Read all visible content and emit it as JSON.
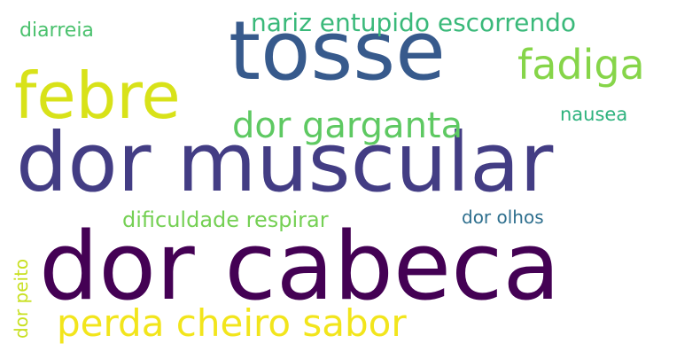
{
  "words": [
    {
      "id": "dor-cabeca",
      "text": "dor cabeca",
      "color": "#440154"
    },
    {
      "id": "dor-muscular",
      "text": "dor muscular",
      "color": "#433d84"
    },
    {
      "id": "tosse",
      "text": "tosse",
      "color": "#375a8c"
    },
    {
      "id": "febre",
      "text": "febre",
      "color": "#d8e219"
    },
    {
      "id": "fadiga",
      "text": "fadiga",
      "color": "#86d549"
    },
    {
      "id": "nariz-entupido-escorrendo",
      "text": "nariz entupido escorrendo",
      "color": "#3ab97a"
    },
    {
      "id": "dor-garganta",
      "text": "dor garganta",
      "color": "#5ec962"
    },
    {
      "id": "perda-cheiro-sabor",
      "text": "perda cheiro sabor",
      "color": "#f2e51c"
    },
    {
      "id": "dificuldade-respirar",
      "text": "dificuldade respirar",
      "color": "#75d054"
    },
    {
      "id": "diarreia",
      "text": "diarreia",
      "color": "#4ac16d"
    },
    {
      "id": "nausea",
      "text": "nausea",
      "color": "#2db27d"
    },
    {
      "id": "dor-olhos",
      "text": "dor olhos",
      "color": "#2e6f8e"
    },
    {
      "id": "dor-peito",
      "text": "dor peito",
      "color": "#c8e020"
    }
  ]
}
